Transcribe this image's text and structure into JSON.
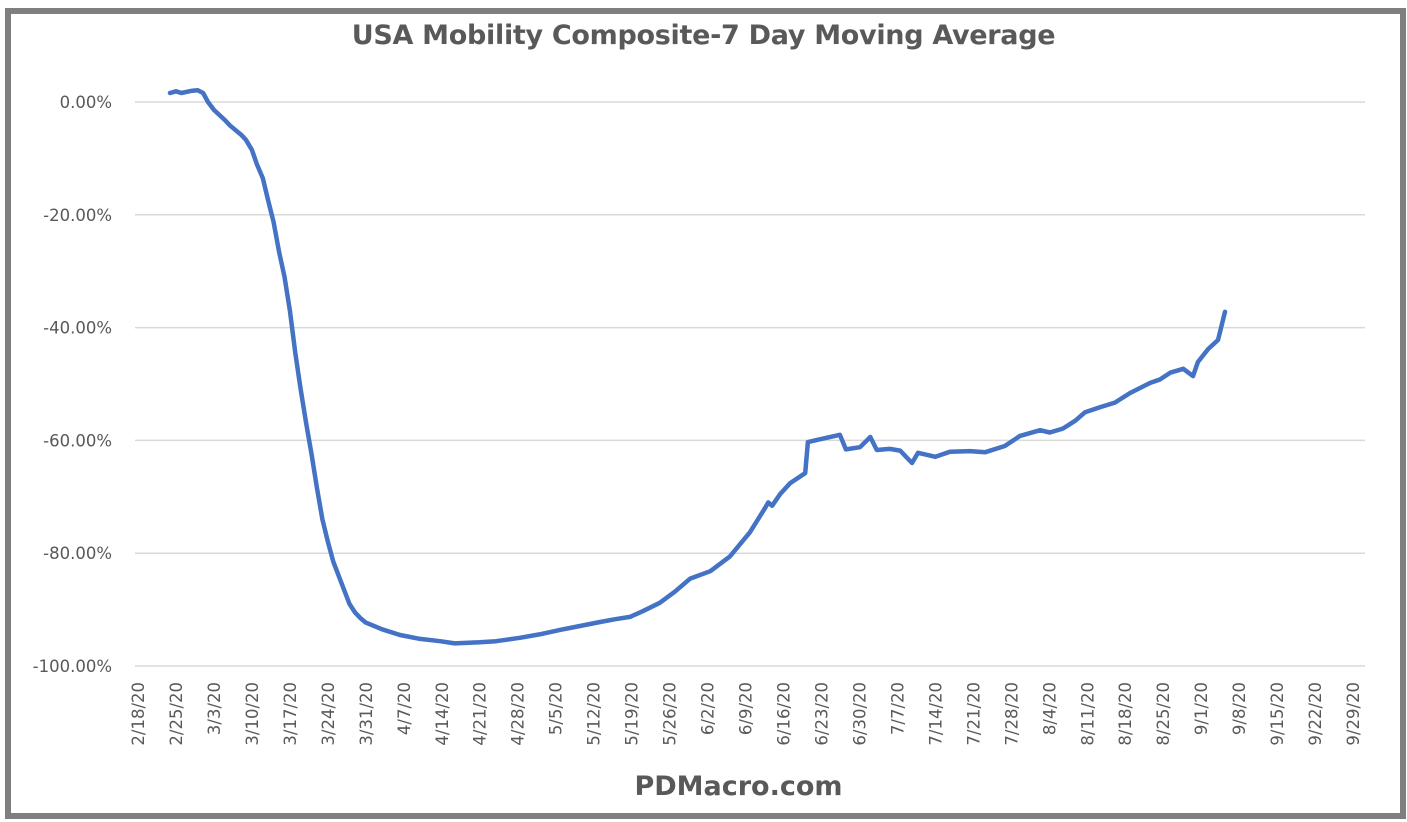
{
  "chart_data": {
    "type": "line",
    "title": "USA Mobility Composite-7 Day Moving Average",
    "footer": "PDMacro.com",
    "xlabel": "",
    "ylabel": "",
    "ylim": [
      -100,
      0
    ],
    "xlim": [
      "2/18/20",
      "9/29/20"
    ],
    "grid": true,
    "legend": "none",
    "line_color": "#4472c4",
    "y_ticks": [
      {
        "value": 0,
        "label": "0.00%"
      },
      {
        "value": -20,
        "label": "-20.00%"
      },
      {
        "value": -40,
        "label": "-40.00%"
      },
      {
        "value": -60,
        "label": "-60.00%"
      },
      {
        "value": -80,
        "label": "-80.00%"
      },
      {
        "value": -100,
        "label": "-100.00%"
      }
    ],
    "x_ticks": [
      "2/18/20",
      "2/25/20",
      "3/3/20",
      "3/10/20",
      "3/17/20",
      "3/24/20",
      "3/31/20",
      "4/7/20",
      "4/14/20",
      "4/21/20",
      "4/28/20",
      "5/5/20",
      "5/12/20",
      "5/19/20",
      "5/26/20",
      "6/2/20",
      "6/9/20",
      "6/16/20",
      "6/23/20",
      "6/30/20",
      "7/7/20",
      "7/14/20",
      "7/21/20",
      "7/28/20",
      "8/4/20",
      "8/11/20",
      "8/18/20",
      "8/25/20",
      "9/1/20",
      "9/8/20",
      "9/15/20",
      "9/22/20",
      "9/29/20"
    ],
    "series": [
      {
        "name": "USA Mobility Composite-7 Day Moving Average",
        "unit": "%",
        "x_days_since_2_18_20": [
          5.9,
          7,
          8,
          9,
          10,
          11,
          12,
          12.9,
          14,
          15,
          16,
          17,
          18,
          19,
          19.9,
          21,
          21.9,
          23,
          24,
          25,
          26,
          27,
          28,
          29,
          30,
          31,
          32,
          33,
          34,
          35,
          36,
          37,
          38,
          39,
          40,
          41,
          42,
          45,
          48.3,
          52,
          55.7,
          58.4,
          63,
          66,
          70.4,
          74,
          77.8,
          81,
          85.2,
          88,
          90.7,
          93,
          96.2,
          99,
          101.8,
          105.5,
          109.1,
          112.8,
          115.6,
          116.2,
          116.9,
          118.4,
          120.2,
          123,
          123.5,
          125.7,
          129.4,
          130.5,
          133.1,
          135,
          136.2,
          138.6,
          140.5,
          142.7,
          143.8,
          147,
          149.7,
          153.4,
          156.2,
          159.8,
          162.6,
          166.3,
          168.1,
          170.5,
          172.8,
          174.6,
          177.4,
          180.1,
          182.9,
          186.6,
          188.4,
          190.3,
          192.7,
          194.5,
          195.4,
          197.3,
          199.1,
          200.4
        ],
        "values": [
          1.6,
          1.9,
          1.6,
          1.8,
          2.0,
          2.1,
          1.6,
          0.0,
          -1.4,
          -2.3,
          -3.2,
          -4.2,
          -5.0,
          -5.8,
          -6.7,
          -8.5,
          -11.0,
          -13.5,
          -17.5,
          -21.3,
          -26.5,
          -31.0,
          -37.0,
          -44.5,
          -51.0,
          -57.0,
          -62.5,
          -68.5,
          -74.0,
          -78.0,
          -81.5,
          -84.0,
          -86.5,
          -89.0,
          -90.5,
          -91.5,
          -92.3,
          -93.5,
          -94.5,
          -95.2,
          -95.6,
          -96.0,
          -95.8,
          -95.6,
          -95.0,
          -94.4,
          -93.6,
          -93.0,
          -92.2,
          -91.7,
          -91.3,
          -90.3,
          -88.8,
          -86.8,
          -84.5,
          -83.2,
          -80.6,
          -76.3,
          -72.0,
          -71.0,
          -71.6,
          -69.5,
          -67.6,
          -65.8,
          -60.3,
          -59.8,
          -59.0,
          -61.6,
          -61.2,
          -59.4,
          -61.7,
          -61.5,
          -61.8,
          -64.0,
          -62.2,
          -62.9,
          -62.0,
          -61.9,
          -62.1,
          -61.0,
          -59.2,
          -58.2,
          -58.6,
          -57.9,
          -56.5,
          -55.0,
          -54.1,
          -53.3,
          -51.6,
          -49.8,
          -49.2,
          -48.0,
          -47.3,
          -48.6,
          -46.1,
          -43.8,
          -42.2,
          -37.2
        ]
      }
    ]
  }
}
